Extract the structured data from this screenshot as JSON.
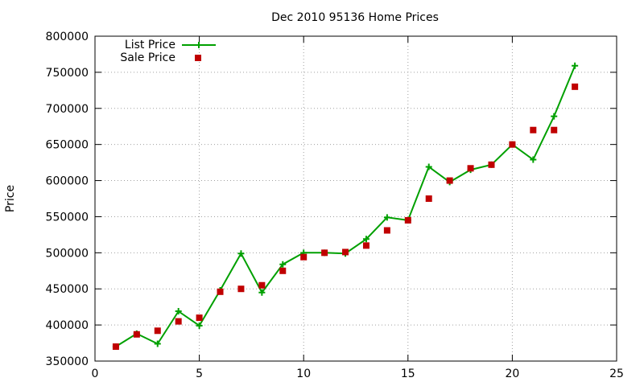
{
  "chart_data": {
    "type": "line",
    "title": "Dec 2010 95136 Home Prices",
    "ylabel": "Price",
    "xlabel": "",
    "xlim": [
      0,
      25
    ],
    "ylim": [
      350000,
      800000
    ],
    "xticks": [
      0,
      5,
      10,
      15,
      20,
      25
    ],
    "yticks": [
      350000,
      400000,
      450000,
      500000,
      550000,
      600000,
      650000,
      700000,
      750000,
      800000
    ],
    "grid": true,
    "legend_position": "top-left",
    "colors": {
      "list": "#00a000",
      "sale": "#c00000"
    },
    "series": [
      {
        "name": "List Price",
        "style": "line-with-plus-markers",
        "points": [
          [
            1,
            370000
          ],
          [
            2,
            388000
          ],
          [
            3,
            374000
          ],
          [
            4,
            419000
          ],
          [
            5,
            399000
          ],
          [
            6,
            448000
          ],
          [
            7,
            499000
          ],
          [
            8,
            445000
          ],
          [
            9,
            484000
          ],
          [
            10,
            500000
          ],
          [
            11,
            500000
          ],
          [
            12,
            499000
          ],
          [
            13,
            519000
          ],
          [
            14,
            549000
          ],
          [
            15,
            545000
          ],
          [
            16,
            619000
          ],
          [
            17,
            598000
          ],
          [
            18,
            615000
          ],
          [
            19,
            622000
          ],
          [
            20,
            650000
          ],
          [
            21,
            629000
          ],
          [
            22,
            689000
          ],
          [
            23,
            759000
          ]
        ]
      },
      {
        "name": "Sale Price",
        "style": "square-markers",
        "points": [
          [
            1,
            370000
          ],
          [
            2,
            387000
          ],
          [
            3,
            392000
          ],
          [
            4,
            405000
          ],
          [
            5,
            410000
          ],
          [
            6,
            446000
          ],
          [
            7,
            450000
          ],
          [
            8,
            455000
          ],
          [
            9,
            475000
          ],
          [
            10,
            494000
          ],
          [
            11,
            500000
          ],
          [
            12,
            501000
          ],
          [
            13,
            510000
          ],
          [
            14,
            531000
          ],
          [
            15,
            545000
          ],
          [
            16,
            575000
          ],
          [
            17,
            600000
          ],
          [
            18,
            617000
          ],
          [
            19,
            622000
          ],
          [
            20,
            650000
          ],
          [
            21,
            670000
          ],
          [
            22,
            670000
          ],
          [
            23,
            730000
          ]
        ]
      }
    ]
  }
}
